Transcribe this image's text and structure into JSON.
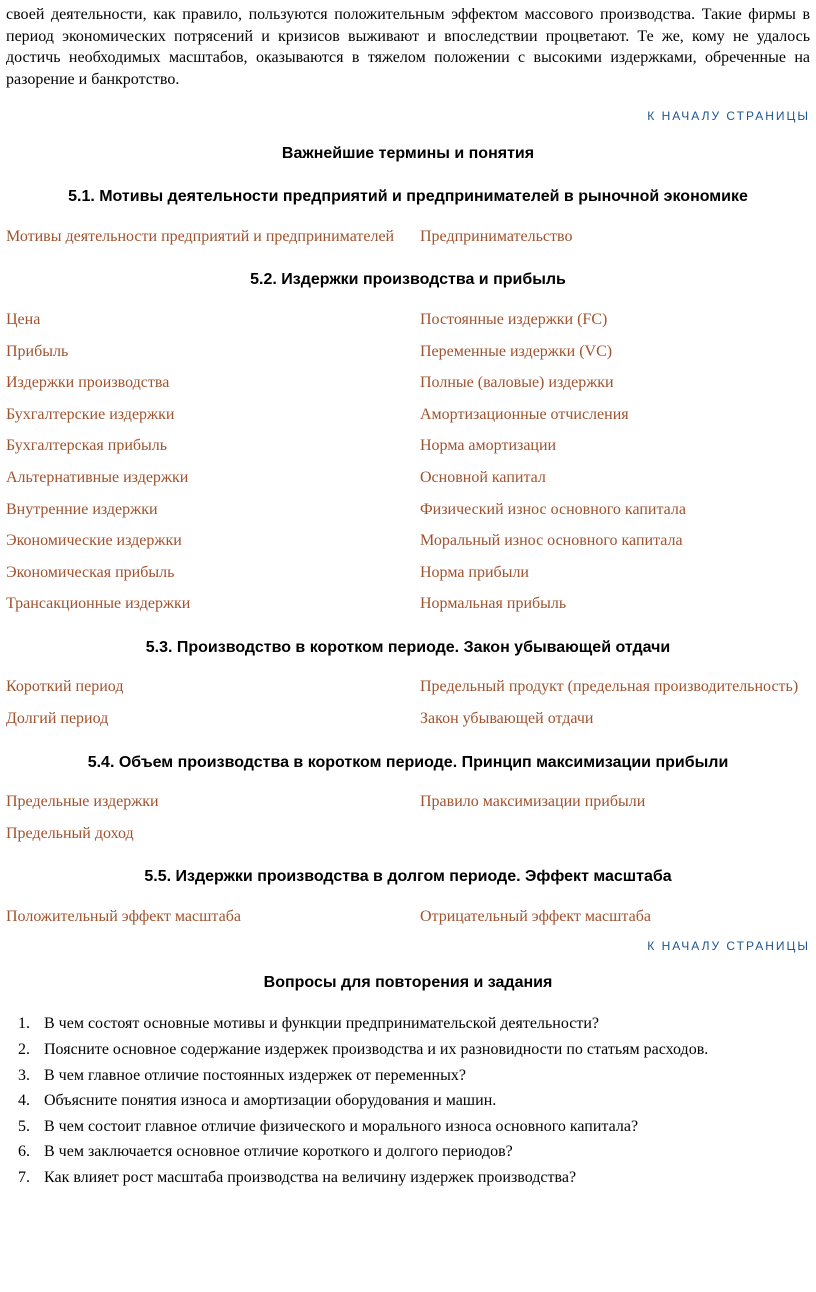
{
  "intro_paragraph": "своей деятельности, как правило, пользуются положительным эффектом массового производства. Такие фирмы в период экономических потрясений и кризисов выживают и впоследствии процветают. Те же, кому не удалось достичь необходимых масштабов, оказываются в тяжелом положении с высокими издержками, обреченные на разорение и банкротство.",
  "top_link_text": "К НАЧАЛУ СТРАНИЦЫ",
  "section_title_terms": "Важнейшие термины и понятия",
  "sub51": {
    "title": "5.1. Мотивы деятельности предприятий и предпринимателей в рыночной экономике",
    "left": [
      "Мотивы деятельности предприятий и предпринимателей"
    ],
    "right": [
      "Предпринимательство"
    ]
  },
  "sub52": {
    "title": "5.2. Издержки производства и прибыль",
    "left": [
      "Цена",
      "Прибыль",
      "Издержки производства",
      "Бухгалтерские издержки",
      "Бухгалтерская прибыль",
      "Альтернативные издержки",
      "Внутренние издержки",
      "Экономические издержки",
      "Экономическая прибыль",
      "Трансакционные издержки"
    ],
    "right": [
      "Постоянные издержки (FC)",
      "Переменные издержки (VC)",
      "Полные (валовые) издержки",
      "Амортизационные отчисления",
      "Норма амортизации",
      "Основной капитал",
      "Физический износ основного капитала",
      "Моральный износ основного капитала",
      "Норма прибыли",
      "Нормальная прибыль"
    ]
  },
  "sub53": {
    "title": "5.3. Производство в коротком периоде. Закон убывающей отдачи",
    "left": [
      "Короткий период",
      "Долгий период"
    ],
    "right": [
      "Предельный продукт (предельная производительность)",
      "Закон убывающей отдачи"
    ]
  },
  "sub54": {
    "title": "5.4. Объем производства в коротком периоде. Принцип максимизации прибыли",
    "left": [
      "Предельные издержки",
      "Предельный доход"
    ],
    "right": [
      "Правило максимизации прибыли",
      ""
    ]
  },
  "sub55": {
    "title": "5.5. Издержки производства в долгом периоде. Эффект масштаба",
    "left": [
      "Положительный эффект масштаба"
    ],
    "right": [
      "Отрицательный эффект масштаба"
    ]
  },
  "section_title_questions": "Вопросы для повторения и задания",
  "questions": [
    "В чем состоят основные мотивы и функции предпринимательской деятельности?",
    "Поясните основное содержание издержек производства и их разновидности по статьям расходов.",
    "В чем главное отличие постоянных издержек от переменных?",
    "Объясните понятия износа и амортизации оборудования и машин.",
    "В чем состоит главное отличие физического и морального износа основного капитала?",
    "В чем заключается основное отличие короткого и долгого периодов?",
    "Как влияет рост масштаба производства на величину издержек производства?"
  ]
}
